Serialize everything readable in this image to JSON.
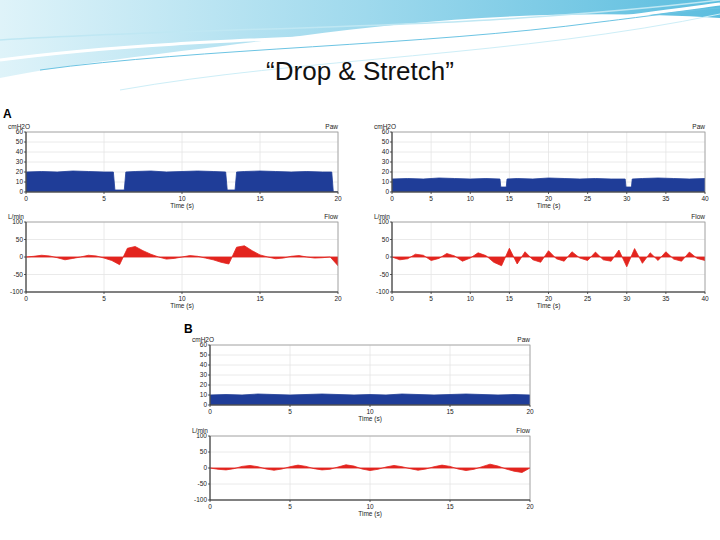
{
  "title": "“Drop & Stretch”",
  "panel_labels": [
    "A",
    "B"
  ],
  "chart_data": [
    {
      "type": "area",
      "title": "Paw",
      "y_label": "cmH2O",
      "x_label": "Time (s)",
      "color": "#1f3d98",
      "grid": true,
      "xlim": [
        0,
        20
      ],
      "xticks": [
        0,
        5,
        10,
        15,
        20
      ],
      "ylim": [
        0,
        60
      ],
      "yticks": [
        0,
        10,
        20,
        30,
        40,
        50,
        60
      ],
      "x": [
        0,
        1,
        2,
        3,
        4,
        5,
        5.6,
        5.7,
        6.3,
        6.4,
        7,
        8,
        9,
        10,
        11,
        12,
        12.8,
        12.9,
        13.4,
        13.5,
        14,
        15,
        16,
        17,
        18,
        19,
        19.6,
        19.7,
        20
      ],
      "values": [
        20,
        20.5,
        20,
        21,
        20.5,
        20,
        20,
        2,
        2,
        20,
        20.5,
        21,
        20,
        20.5,
        21,
        20.5,
        20,
        2,
        2,
        20,
        20.5,
        21,
        20.5,
        20,
        20.5,
        20,
        20,
        0,
        0
      ]
    },
    {
      "type": "area",
      "title": "Flow",
      "y_label": "L/min",
      "x_label": "Time (s)",
      "color": "#e3241e",
      "grid": true,
      "xlim": [
        0,
        20
      ],
      "xticks": [
        0,
        5,
        10,
        15,
        20
      ],
      "ylim": [
        -100,
        100
      ],
      "yticks": [
        -100,
        -50,
        0,
        50,
        100
      ],
      "x": [
        0,
        0.5,
        1,
        1.5,
        2,
        2.5,
        3,
        3.5,
        4,
        4.5,
        5,
        5.5,
        6,
        6.5,
        7,
        7.5,
        8,
        8.5,
        9,
        9.5,
        10,
        10.5,
        11,
        11.5,
        12,
        12.5,
        13,
        13.5,
        14,
        14.5,
        15,
        15.5,
        16,
        16.5,
        17,
        17.5,
        18,
        18.5,
        19,
        19.5,
        20
      ],
      "values": [
        0,
        2,
        5,
        3,
        -2,
        -8,
        -4,
        0,
        5,
        3,
        -3,
        -10,
        -22,
        25,
        30,
        18,
        8,
        0,
        -6,
        -4,
        0,
        4,
        2,
        -3,
        -8,
        -15,
        -20,
        28,
        32,
        18,
        6,
        0,
        -5,
        -3,
        2,
        4,
        0,
        -3,
        -2,
        0,
        -25
      ]
    },
    {
      "type": "area",
      "title": "Paw",
      "y_label": "cmH2O",
      "x_label": "Time (s)",
      "color": "#1f3d98",
      "grid": true,
      "xlim": [
        0,
        40
      ],
      "xticks": [
        0,
        5,
        10,
        15,
        20,
        25,
        30,
        35,
        40
      ],
      "ylim": [
        0,
        60
      ],
      "yticks": [
        0,
        10,
        20,
        30,
        40,
        50,
        60
      ],
      "x": [
        0,
        2,
        4,
        6,
        8,
        10,
        12,
        13.8,
        13.9,
        14.6,
        14.7,
        16,
        18,
        20,
        22,
        24,
        26,
        28,
        29.8,
        29.9,
        30.6,
        30.7,
        32,
        34,
        36,
        38,
        40
      ],
      "values": [
        13,
        13.5,
        13,
        14,
        13.5,
        13,
        13.5,
        13,
        5,
        5,
        13,
        13.5,
        13,
        14,
        13.5,
        13,
        13.5,
        13,
        13,
        5,
        5,
        13,
        13.5,
        14,
        13.5,
        13,
        13.5
      ]
    },
    {
      "type": "area",
      "title": "Flow",
      "y_label": "L/min",
      "x_label": "Time (s)",
      "color": "#e3241e",
      "grid": true,
      "xlim": [
        0,
        40
      ],
      "xticks": [
        0,
        5,
        10,
        15,
        20,
        25,
        30,
        35,
        40
      ],
      "ylim": [
        -100,
        100
      ],
      "yticks": [
        -100,
        -50,
        0,
        50,
        100
      ],
      "x": [
        0,
        1,
        2,
        3,
        4,
        5,
        6,
        7,
        8,
        9,
        10,
        11,
        12,
        13,
        14,
        15,
        16,
        17,
        18,
        19,
        20,
        21,
        22,
        23,
        24,
        25,
        26,
        27,
        28,
        29,
        30,
        31,
        32,
        33,
        34,
        35,
        36,
        37,
        38,
        39,
        40
      ],
      "values": [
        0,
        -8,
        -5,
        8,
        5,
        -10,
        -4,
        10,
        3,
        -12,
        -3,
        12,
        4,
        -15,
        -25,
        25,
        -20,
        15,
        -8,
        -15,
        18,
        -5,
        -12,
        15,
        -3,
        -10,
        14,
        -8,
        -12,
        20,
        -28,
        24,
        -18,
        12,
        -10,
        15,
        -6,
        -12,
        14,
        -4,
        -10
      ]
    },
    {
      "type": "area",
      "title": "Paw",
      "y_label": "cmH2O",
      "x_label": "Time (s)",
      "color": "#1f3d98",
      "grid": true,
      "xlim": [
        0,
        20
      ],
      "xticks": [
        0,
        5,
        10,
        15,
        20
      ],
      "ylim": [
        0,
        60
      ],
      "yticks": [
        0,
        10,
        20,
        30,
        40,
        50,
        60
      ],
      "x": [
        0,
        1,
        2,
        3,
        4,
        5,
        6,
        7,
        8,
        9,
        10,
        11,
        12,
        13,
        14,
        15,
        16,
        17,
        18,
        19,
        20
      ],
      "values": [
        10,
        10.5,
        10,
        11,
        10.5,
        10,
        10.5,
        11,
        10.5,
        10,
        10.5,
        10,
        11,
        10.5,
        10,
        10.5,
        11,
        10.5,
        10,
        10.5,
        10
      ]
    },
    {
      "type": "area",
      "title": "Flow",
      "y_label": "L/min",
      "x_label": "Time (s)",
      "color": "#e3241e",
      "grid": true,
      "xlim": [
        0,
        20
      ],
      "xticks": [
        0,
        5,
        10,
        15,
        20
      ],
      "ylim": [
        -100,
        100
      ],
      "yticks": [
        -100,
        -50,
        0,
        50,
        100
      ],
      "x": [
        0,
        0.5,
        1,
        1.5,
        2,
        2.5,
        3,
        3.5,
        4,
        4.5,
        5,
        5.5,
        6,
        6.5,
        7,
        7.5,
        8,
        8.5,
        9,
        9.5,
        10,
        10.5,
        11,
        11.5,
        12,
        12.5,
        13,
        13.5,
        14,
        14.5,
        15,
        15.5,
        16,
        16.5,
        17,
        17.5,
        18,
        18.5,
        19,
        19.5,
        20
      ],
      "values": [
        0,
        -4,
        -6,
        -2,
        5,
        8,
        4,
        -3,
        -7,
        -3,
        4,
        9,
        5,
        -2,
        -6,
        -4,
        3,
        10,
        6,
        -3,
        -8,
        -4,
        3,
        8,
        4,
        -2,
        -7,
        -3,
        4,
        9,
        5,
        -3,
        -8,
        -4,
        4,
        12,
        6,
        -3,
        -10,
        -14,
        0
      ]
    }
  ]
}
